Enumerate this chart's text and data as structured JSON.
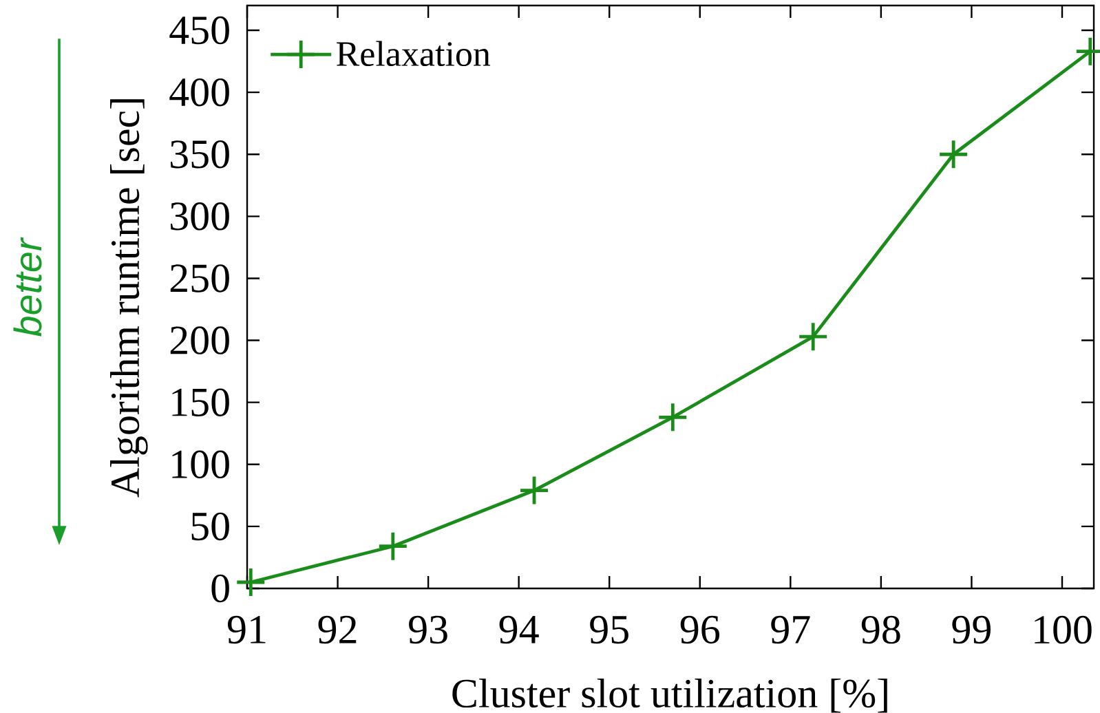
{
  "chart_data": {
    "type": "line",
    "xlabel": "Cluster slot utilization [%]",
    "ylabel": "Algorithm runtime [sec]",
    "annotations": [
      "better"
    ],
    "series": [
      {
        "name": "Relaxation",
        "color": "#1a8c1a",
        "x": [
          91.04,
          92.61,
          94.17,
          95.7,
          97.25,
          98.8,
          100.31
        ],
        "values": [
          5,
          34,
          79,
          138,
          203,
          350,
          433
        ]
      }
    ],
    "xlim": [
      91,
      100.35
    ],
    "ylim": [
      0,
      470
    ],
    "xticks": [
      91,
      92,
      93,
      94,
      95,
      96,
      97,
      98,
      99,
      100
    ],
    "yticks": [
      0,
      50,
      100,
      150,
      200,
      250,
      300,
      350,
      400,
      450
    ],
    "legend": "top left",
    "marker": "cross",
    "line_style": "solid",
    "grid": false
  }
}
